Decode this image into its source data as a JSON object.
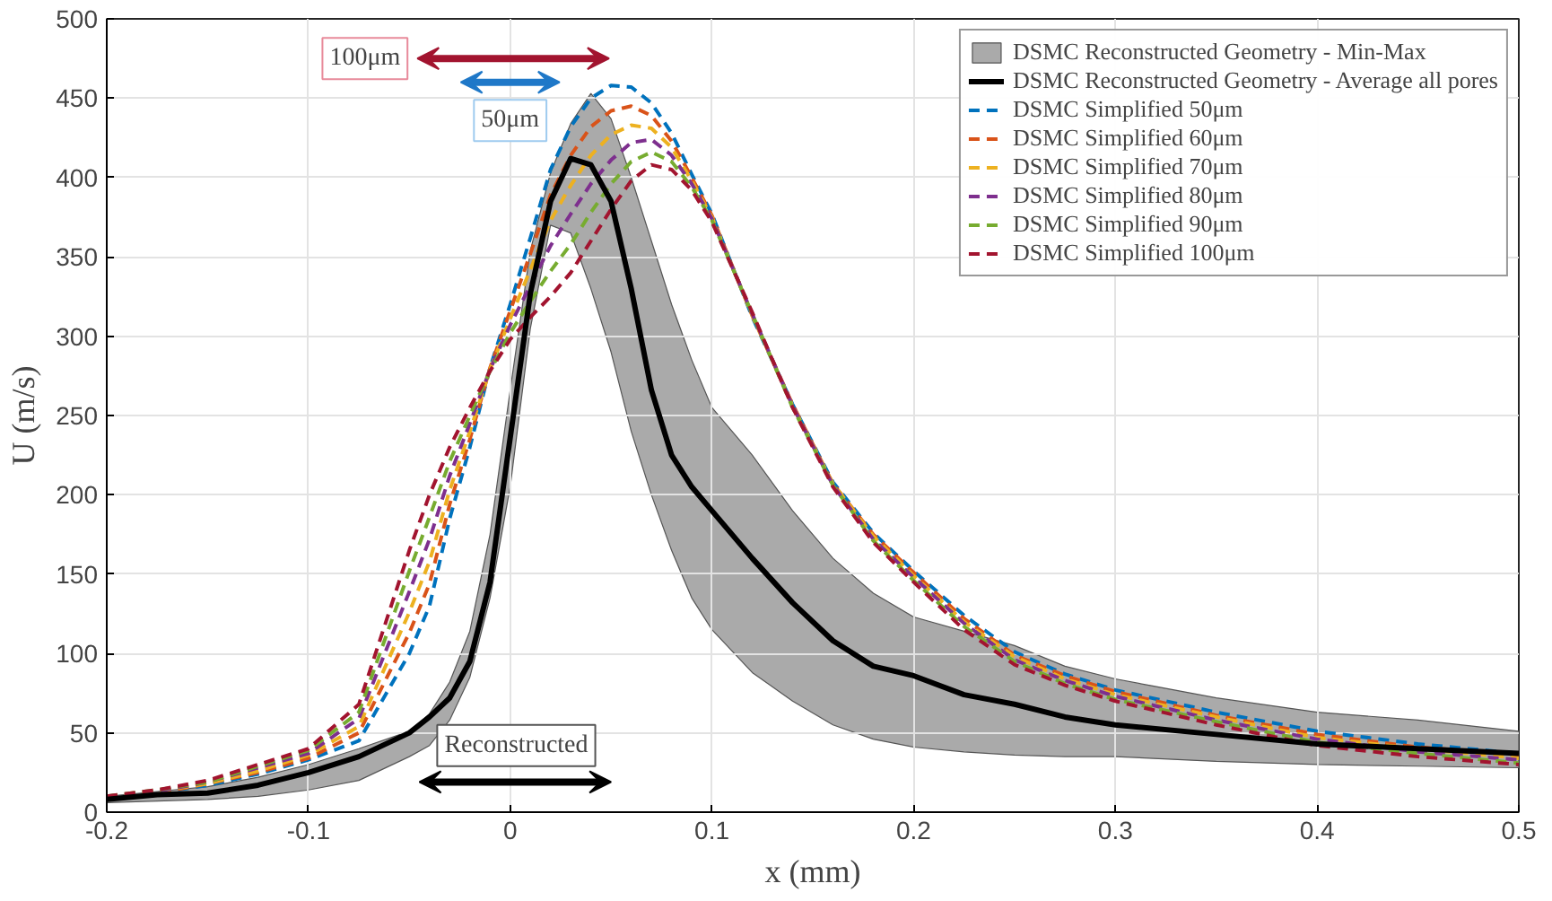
{
  "chart_data": {
    "type": "line",
    "xlabel": "x (mm)",
    "ylabel": "U (m/s)",
    "xlim": [
      -0.2,
      0.5
    ],
    "ylim": [
      0,
      500
    ],
    "xticks": [
      -0.2,
      -0.1,
      0,
      0.1,
      0.2,
      0.3,
      0.4,
      0.5
    ],
    "yticks": [
      0,
      50,
      100,
      150,
      200,
      250,
      300,
      350,
      400,
      450,
      500
    ],
    "grid": true,
    "legend": "top right",
    "x": [
      -0.2,
      -0.175,
      -0.15,
      -0.125,
      -0.1,
      -0.075,
      -0.05,
      -0.04,
      -0.03,
      -0.02,
      -0.01,
      0,
      0.01,
      0.02,
      0.03,
      0.04,
      0.05,
      0.06,
      0.07,
      0.08,
      0.09,
      0.1,
      0.12,
      0.14,
      0.16,
      0.18,
      0.2,
      0.225,
      0.25,
      0.275,
      0.3,
      0.35,
      0.4,
      0.45,
      0.5
    ],
    "series": [
      {
        "name": "DSMC Reconstructed Geometry - Min-Max",
        "type": "area",
        "color": "#aaaaaa",
        "values": [
          null,
          null,
          null,
          null,
          null,
          null,
          null,
          null,
          null,
          null,
          null,
          null,
          null,
          null,
          null,
          null,
          null,
          null,
          null,
          null,
          null,
          null,
          null,
          null,
          null,
          null,
          null,
          null,
          null,
          null,
          null,
          null,
          null,
          null,
          null
        ]
      },
      {
        "name": "DSMC Reconstructed Geometry - Average all pores",
        "color": "#000000",
        "line_style": "solid",
        "values": [
          8,
          11,
          12,
          17,
          25,
          35,
          50,
          60,
          72,
          95,
          145,
          236,
          327,
          385,
          412,
          408,
          385,
          330,
          266,
          225,
          205,
          190,
          160,
          132,
          108,
          92,
          86,
          74,
          68,
          60,
          55,
          49,
          43,
          40,
          37
        ],
        "lower": [
          6,
          7,
          8,
          10,
          14,
          20,
          35,
          42,
          58,
          85,
          135,
          205,
          305,
          370,
          365,
          330,
          290,
          240,
          200,
          165,
          135,
          115,
          88,
          70,
          55,
          46,
          41,
          38,
          36,
          35,
          35,
          32,
          30,
          29,
          28
        ],
        "upper": [
          10,
          13,
          16,
          22,
          30,
          40,
          51,
          62,
          82,
          114,
          175,
          266,
          354,
          403,
          434,
          453,
          437,
          400,
          360,
          320,
          285,
          255,
          225,
          190,
          160,
          138,
          123,
          114,
          105,
          92,
          84,
          72,
          63,
          58,
          51
        ]
      },
      {
        "name": "DSMC Simplified 50μm",
        "color": "#0072bd",
        "line_style": "dashed",
        "values": [
          9,
          12,
          17,
          24,
          33,
          45,
          100,
          130,
          185,
          230,
          280,
          320,
          362,
          405,
          432,
          450,
          458,
          457,
          447,
          428,
          402,
          377,
          312,
          257,
          208,
          176,
          152,
          124,
          101,
          87,
          77,
          63,
          51,
          43,
          37
        ]
      },
      {
        "name": "DSMC Simplified 60μm",
        "color": "#d95319",
        "line_style": "dashed",
        "values": [
          9,
          12,
          18,
          25,
          34,
          50,
          113,
          144,
          194,
          235,
          280,
          316,
          352,
          389,
          414,
          432,
          442,
          445,
          439,
          423,
          400,
          376,
          313,
          257,
          207,
          175,
          151,
          122,
          99,
          86,
          76,
          61,
          49,
          41,
          36
        ]
      },
      {
        "name": "DSMC Simplified 70μm",
        "color": "#edb120",
        "line_style": "dashed",
        "values": [
          9,
          13,
          18,
          26,
          36,
          54,
          126,
          158,
          203,
          240,
          279,
          311,
          342,
          373,
          395,
          414,
          427,
          433,
          431,
          419,
          398,
          375,
          313,
          256,
          207,
          174,
          149,
          120,
          98,
          84,
          74,
          60,
          47,
          40,
          34
        ]
      },
      {
        "name": "DSMC Simplified 80μm",
        "color": "#7e2f8e",
        "line_style": "dashed",
        "values": [
          10,
          13,
          19,
          28,
          37,
          59,
          139,
          172,
          212,
          245,
          279,
          307,
          332,
          357,
          377,
          396,
          411,
          422,
          424,
          414,
          396,
          374,
          314,
          256,
          206,
          172,
          148,
          119,
          96,
          83,
          73,
          58,
          46,
          38,
          33
        ]
      },
      {
        "name": "DSMC Simplified 90μm",
        "color": "#77ac30",
        "line_style": "dashed",
        "values": [
          10,
          14,
          19,
          29,
          39,
          63,
          152,
          186,
          221,
          250,
          278,
          302,
          322,
          341,
          358,
          378,
          396,
          410,
          416,
          410,
          394,
          373,
          314,
          255,
          206,
          171,
          146,
          117,
          95,
          81,
          71,
          57,
          44,
          37,
          31
        ]
      },
      {
        "name": "DSMC Simplified 100μm",
        "color": "#a2142f",
        "line_style": "dashed",
        "values": [
          10,
          14,
          20,
          30,
          40,
          68,
          165,
          200,
          230,
          255,
          278,
          298,
          312,
          325,
          340,
          360,
          380,
          398,
          408,
          405,
          392,
          372,
          315,
          255,
          205,
          170,
          145,
          115,
          93,
          80,
          70,
          55,
          42,
          35,
          30
        ]
      }
    ],
    "annotations": [
      "100μm",
      "50μm",
      "Reconstructed"
    ]
  }
}
